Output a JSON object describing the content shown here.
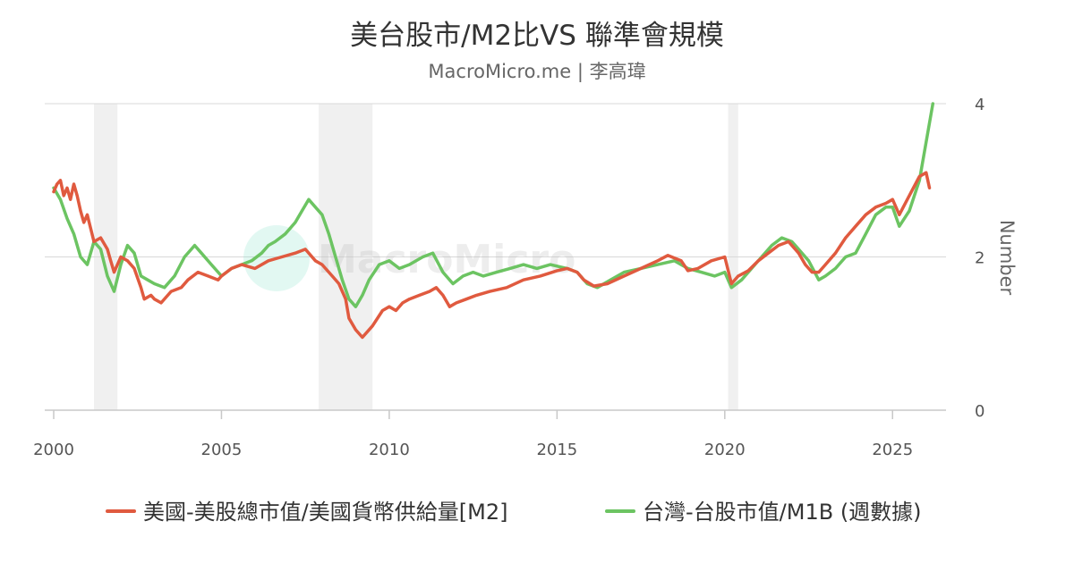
{
  "chart_data": {
    "type": "line",
    "title": "美台股市/M2比VS 聯準會規模",
    "subtitle": "MacroMicro.me | 李高瑋",
    "watermark": "MacroMicro",
    "ylabel": "Number",
    "xlim": [
      2000,
      2026.3
    ],
    "ylim": [
      0,
      4
    ],
    "x_ticks": [
      "2000",
      "2005",
      "2010",
      "2015",
      "2020",
      "2025"
    ],
    "y_ticks": [
      "0",
      "2",
      "4"
    ],
    "grid": "horizontal",
    "legend_position": "bottom",
    "recessions": [
      [
        2001.2,
        2001.9
      ],
      [
        2007.9,
        2009.5
      ],
      [
        2020.1,
        2020.4
      ]
    ],
    "series": [
      {
        "name": "美國-美股總市值/美國貨幣供給量[M2]",
        "color": "#e05a3f",
        "x": [
          2000.0,
          2000.1,
          2000.2,
          2000.3,
          2000.4,
          2000.5,
          2000.6,
          2000.7,
          2000.8,
          2000.9,
          2001.0,
          2001.2,
          2001.4,
          2001.6,
          2001.7,
          2001.8,
          2002.0,
          2002.2,
          2002.4,
          2002.6,
          2002.7,
          2002.9,
          2003.0,
          2003.2,
          2003.5,
          2003.8,
          2004.0,
          2004.3,
          2004.6,
          2004.9,
          2005.0,
          2005.3,
          2005.6,
          2006.0,
          2006.4,
          2006.8,
          2007.2,
          2007.5,
          2007.8,
          2008.0,
          2008.3,
          2008.5,
          2008.7,
          2008.8,
          2009.0,
          2009.2,
          2009.5,
          2009.8,
          2010.0,
          2010.2,
          2010.4,
          2010.6,
          2010.9,
          2011.2,
          2011.4,
          2011.6,
          2011.8,
          2012.0,
          2012.3,
          2012.6,
          2013.0,
          2013.5,
          2014.0,
          2014.5,
          2015.0,
          2015.3,
          2015.6,
          2015.8,
          2016.1,
          2016.5,
          2017.0,
          2017.5,
          2018.0,
          2018.3,
          2018.7,
          2018.9,
          2019.2,
          2019.6,
          2020.0,
          2020.2,
          2020.4,
          2020.7,
          2021.0,
          2021.3,
          2021.6,
          2021.9,
          2022.2,
          2022.4,
          2022.6,
          2022.8,
          2023.0,
          2023.3,
          2023.6,
          2023.9,
          2024.2,
          2024.5,
          2024.8,
          2025.0,
          2025.2,
          2025.5,
          2025.8,
          2026.0,
          2026.1
        ],
        "values": [
          2.85,
          2.95,
          3.0,
          2.8,
          2.9,
          2.75,
          2.95,
          2.8,
          2.6,
          2.45,
          2.55,
          2.2,
          2.25,
          2.1,
          1.95,
          1.8,
          2.0,
          1.95,
          1.85,
          1.6,
          1.45,
          1.5,
          1.45,
          1.4,
          1.55,
          1.6,
          1.7,
          1.8,
          1.75,
          1.7,
          1.75,
          1.85,
          1.9,
          1.85,
          1.95,
          2.0,
          2.05,
          2.1,
          1.95,
          1.9,
          1.75,
          1.65,
          1.45,
          1.2,
          1.05,
          0.95,
          1.1,
          1.3,
          1.35,
          1.3,
          1.4,
          1.45,
          1.5,
          1.55,
          1.6,
          1.5,
          1.35,
          1.4,
          1.45,
          1.5,
          1.55,
          1.6,
          1.7,
          1.75,
          1.82,
          1.85,
          1.8,
          1.7,
          1.62,
          1.65,
          1.75,
          1.85,
          1.95,
          2.02,
          1.95,
          1.82,
          1.85,
          1.95,
          2.0,
          1.65,
          1.75,
          1.82,
          1.95,
          2.05,
          2.15,
          2.2,
          2.05,
          1.9,
          1.8,
          1.8,
          1.9,
          2.05,
          2.25,
          2.4,
          2.55,
          2.65,
          2.7,
          2.75,
          2.55,
          2.8,
          3.05,
          3.1,
          2.9
        ]
      },
      {
        "name": "台灣-台股市值/M1B (週數據)",
        "color": "#6cc462",
        "x": [
          2000.0,
          2000.2,
          2000.4,
          2000.6,
          2000.8,
          2001.0,
          2001.2,
          2001.4,
          2001.6,
          2001.8,
          2002.0,
          2002.2,
          2002.4,
          2002.6,
          2002.8,
          2003.0,
          2003.3,
          2003.6,
          2003.9,
          2004.2,
          2004.4,
          2004.7,
          2005.0,
          2005.3,
          2005.6,
          2005.9,
          2006.2,
          2006.4,
          2006.6,
          2006.9,
          2007.2,
          2007.4,
          2007.6,
          2007.8,
          2008.0,
          2008.2,
          2008.4,
          2008.6,
          2008.8,
          2009.0,
          2009.2,
          2009.4,
          2009.7,
          2010.0,
          2010.3,
          2010.6,
          2011.0,
          2011.3,
          2011.6,
          2011.9,
          2012.2,
          2012.5,
          2012.8,
          2013.2,
          2013.6,
          2014.0,
          2014.4,
          2014.8,
          2015.0,
          2015.3,
          2015.6,
          2015.9,
          2016.2,
          2016.6,
          2017.0,
          2017.5,
          2018.0,
          2018.5,
          2018.9,
          2019.3,
          2019.7,
          2020.0,
          2020.2,
          2020.5,
          2020.8,
          2021.1,
          2021.4,
          2021.7,
          2022.0,
          2022.2,
          2022.5,
          2022.8,
          2023.0,
          2023.3,
          2023.6,
          2023.9,
          2024.2,
          2024.5,
          2024.8,
          2025.0,
          2025.2,
          2025.5,
          2025.8,
          2026.0,
          2026.2
        ],
        "values": [
          2.9,
          2.75,
          2.5,
          2.3,
          2.0,
          1.9,
          2.2,
          2.1,
          1.75,
          1.55,
          1.9,
          2.15,
          2.05,
          1.75,
          1.7,
          1.65,
          1.6,
          1.75,
          2.0,
          2.15,
          2.05,
          1.9,
          1.75,
          1.85,
          1.9,
          1.95,
          2.05,
          2.15,
          2.2,
          2.3,
          2.45,
          2.6,
          2.75,
          2.65,
          2.55,
          2.3,
          2.0,
          1.7,
          1.45,
          1.35,
          1.5,
          1.7,
          1.9,
          1.95,
          1.85,
          1.9,
          2.0,
          2.05,
          1.8,
          1.65,
          1.75,
          1.8,
          1.75,
          1.8,
          1.85,
          1.9,
          1.85,
          1.9,
          1.88,
          1.85,
          1.8,
          1.65,
          1.6,
          1.7,
          1.8,
          1.85,
          1.9,
          1.95,
          1.85,
          1.8,
          1.75,
          1.8,
          1.6,
          1.7,
          1.85,
          2.0,
          2.15,
          2.25,
          2.2,
          2.1,
          1.95,
          1.7,
          1.75,
          1.85,
          2.0,
          2.05,
          2.3,
          2.55,
          2.65,
          2.65,
          2.4,
          2.6,
          3.0,
          3.5,
          4.0
        ]
      }
    ]
  }
}
